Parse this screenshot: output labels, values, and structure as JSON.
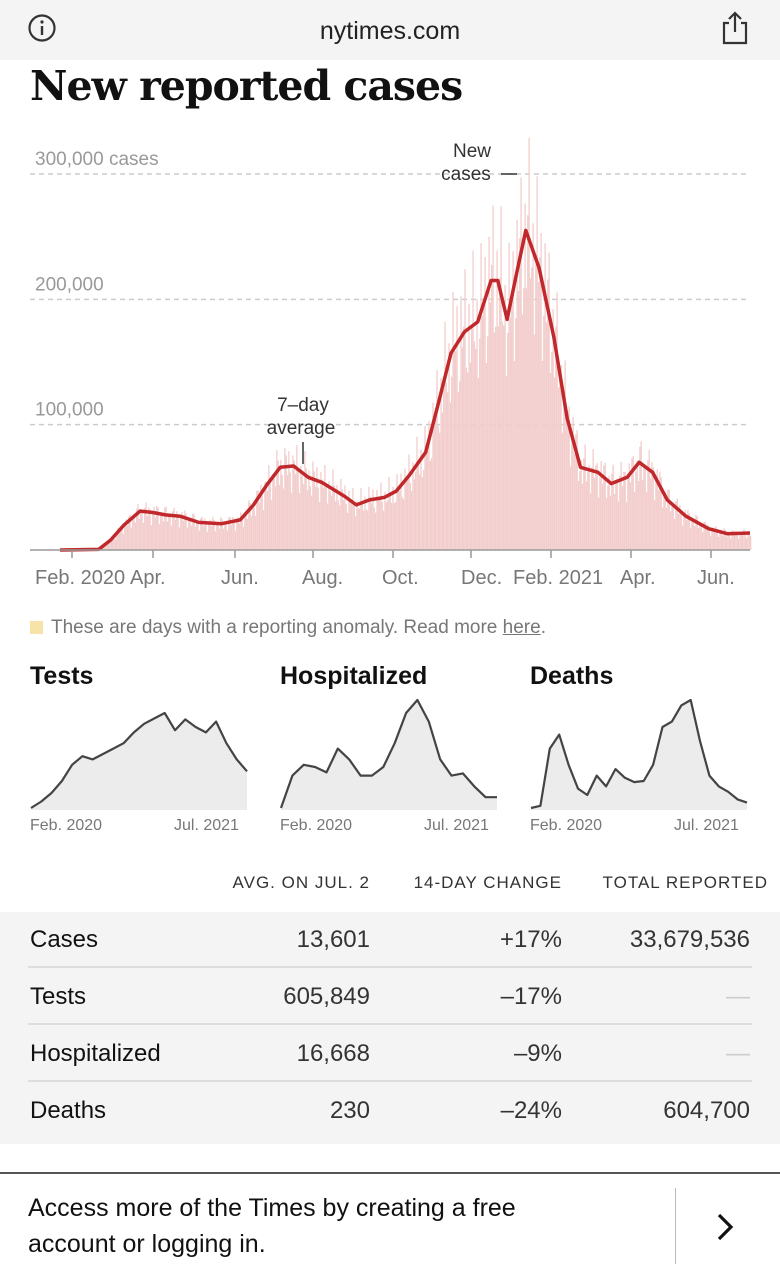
{
  "browser": {
    "domain": "nytimes.com",
    "info_icon": "info-icon",
    "share_icon": "share-icon"
  },
  "headline": "New reported cases",
  "chart_data": {
    "type": "bar",
    "title": "New reported cases",
    "y_ticks": [
      "300,000 cases",
      "200,000",
      "100,000"
    ],
    "x_ticks": [
      "Feb. 2020",
      "Apr.",
      "Jun.",
      "Aug.",
      "Oct.",
      "Dec.",
      "Feb. 2021",
      "Apr.",
      "Jun."
    ],
    "ylim": [
      0,
      300000
    ],
    "annotations": {
      "bars": "New cases",
      "line": "7–day average"
    },
    "series": [
      {
        "name": "7–day average",
        "x": [
          "2020-02-01",
          "2020-03-01",
          "2020-03-10",
          "2020-03-20",
          "2020-04-01",
          "2020-04-10",
          "2020-04-20",
          "2020-05-01",
          "2020-05-15",
          "2020-06-01",
          "2020-06-15",
          "2020-06-25",
          "2020-07-05",
          "2020-07-15",
          "2020-07-25",
          "2020-08-05",
          "2020-08-15",
          "2020-09-01",
          "2020-09-10",
          "2020-09-20",
          "2020-10-01",
          "2020-10-10",
          "2020-10-20",
          "2020-11-01",
          "2020-11-10",
          "2020-11-20",
          "2020-11-30",
          "2020-12-10",
          "2020-12-20",
          "2020-12-25",
          "2021-01-01",
          "2021-01-08",
          "2021-01-15",
          "2021-01-25",
          "2021-02-05",
          "2021-02-15",
          "2021-02-25",
          "2021-03-10",
          "2021-03-20",
          "2021-04-01",
          "2021-04-10",
          "2021-04-20",
          "2021-05-01",
          "2021-05-15",
          "2021-06-01",
          "2021-06-15",
          "2021-07-02"
        ],
        "values": [
          0,
          500,
          8000,
          20000,
          31000,
          30000,
          28000,
          27000,
          22000,
          21000,
          24000,
          36000,
          52000,
          66000,
          67000,
          58000,
          54000,
          43000,
          36000,
          40000,
          42000,
          47000,
          60000,
          78000,
          115000,
          157000,
          174000,
          182000,
          215000,
          215000,
          184000,
          220000,
          255000,
          225000,
          170000,
          105000,
          66000,
          62000,
          53000,
          58000,
          70000,
          62000,
          40000,
          27000,
          17000,
          13000,
          13601
        ]
      }
    ]
  },
  "anomaly_note": {
    "text": "These are days with a reporting anomaly. Read more ",
    "link": "here",
    "end": "."
  },
  "mini_charts": [
    {
      "title": "Tests",
      "x_start": "Feb. 2020",
      "x_end": "Jul. 2021",
      "values": [
        0,
        0.06,
        0.14,
        0.25,
        0.4,
        0.48,
        0.45,
        0.5,
        0.55,
        0.6,
        0.7,
        0.78,
        0.83,
        0.88,
        0.72,
        0.82,
        0.75,
        0.7,
        0.8,
        0.6,
        0.45,
        0.34
      ]
    },
    {
      "title": "Hospitalized",
      "x_start": "Feb. 2020",
      "x_end": "Jul. 2021",
      "values": [
        0,
        0.3,
        0.4,
        0.38,
        0.33,
        0.55,
        0.45,
        0.3,
        0.3,
        0.38,
        0.6,
        0.88,
        1.0,
        0.8,
        0.45,
        0.3,
        0.32,
        0.2,
        0.1,
        0.1
      ]
    },
    {
      "title": "Deaths",
      "x_start": "Feb. 2020",
      "x_end": "Jul. 2021",
      "values": [
        0,
        0.02,
        0.55,
        0.68,
        0.4,
        0.18,
        0.12,
        0.3,
        0.2,
        0.36,
        0.28,
        0.24,
        0.25,
        0.4,
        0.75,
        0.8,
        0.95,
        1.0,
        0.62,
        0.3,
        0.2,
        0.15,
        0.08,
        0.05
      ]
    }
  ],
  "table": {
    "headers": [
      "AVG. ON JUL. 2",
      "14-DAY CHANGE",
      "TOTAL REPORTED"
    ],
    "rows": [
      {
        "name": "Cases",
        "avg": "13,601",
        "change": "+17%",
        "total": "33,679,536"
      },
      {
        "name": "Tests",
        "avg": "605,849",
        "change": "–17%",
        "total": "—"
      },
      {
        "name": "Hospitalized",
        "avg": "16,668",
        "change": "–9%",
        "total": "—"
      },
      {
        "name": "Deaths",
        "avg": "230",
        "change": "–24%",
        "total": "604,700"
      }
    ]
  },
  "colors": {
    "line": "#c0282b",
    "bars": "#f2cdcc",
    "anomaly": "#f7e3a8"
  },
  "banner": {
    "text": "Access more of the Times by creating a free account or logging in.",
    "arrow_icon": "chevron-right-icon"
  }
}
